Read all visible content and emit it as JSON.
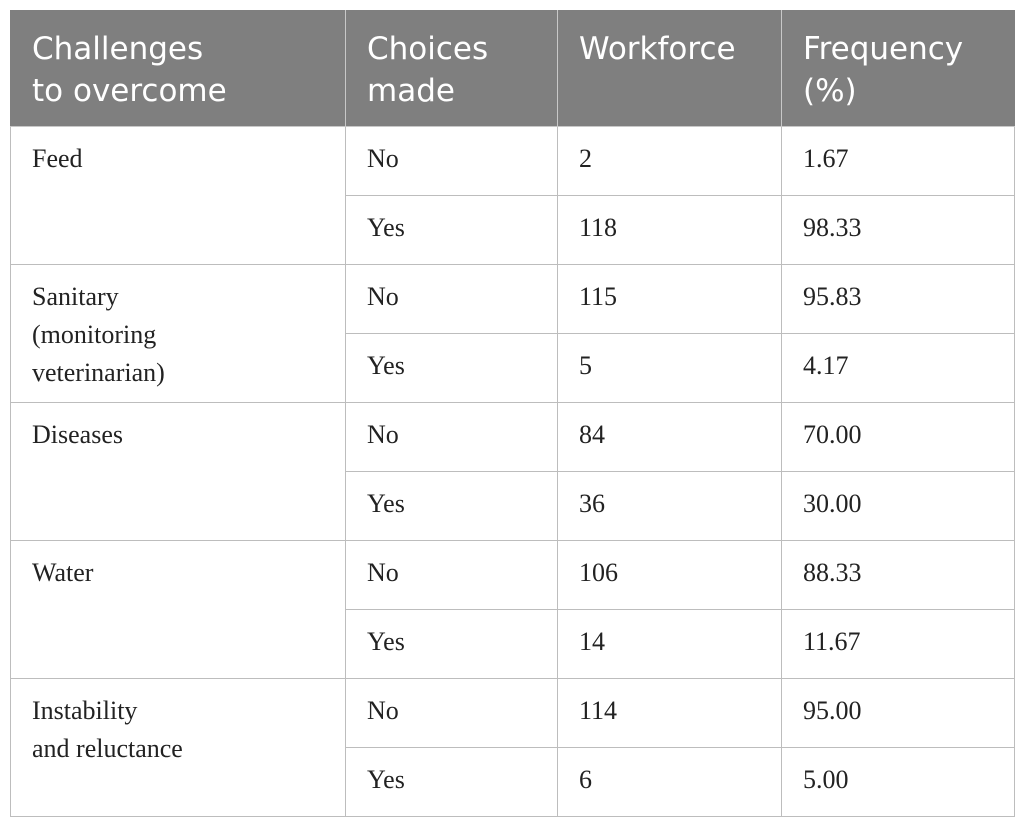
{
  "table": {
    "headers": [
      [
        "Challenges",
        "to overcome"
      ],
      [
        "Choices",
        "made"
      ],
      [
        "Workforce"
      ],
      [
        "Frequency",
        "(%)"
      ]
    ],
    "groups": [
      {
        "challenge": [
          "Feed"
        ],
        "rows": [
          {
            "choice": "No",
            "workforce": "2",
            "frequency": "1.67"
          },
          {
            "choice": "Yes",
            "workforce": "118",
            "frequency": "98.33"
          }
        ]
      },
      {
        "challenge": [
          "Sanitary",
          "(monitoring",
          "veterinarian)"
        ],
        "rows": [
          {
            "choice": "No",
            "workforce": "115",
            "frequency": "95.83"
          },
          {
            "choice": "Yes",
            "workforce": "5",
            "frequency": "4.17"
          }
        ]
      },
      {
        "challenge": [
          "Diseases"
        ],
        "rows": [
          {
            "choice": "No",
            "workforce": "84",
            "frequency": "70.00"
          },
          {
            "choice": "Yes",
            "workforce": "36",
            "frequency": "30.00"
          }
        ]
      },
      {
        "challenge": [
          "Water"
        ],
        "rows": [
          {
            "choice": "No",
            "workforce": "106",
            "frequency": "88.33"
          },
          {
            "choice": "Yes",
            "workforce": "14",
            "frequency": "11.67"
          }
        ]
      },
      {
        "challenge": [
          "Instability",
          "and reluctance"
        ],
        "rows": [
          {
            "choice": "No",
            "workforce": "114",
            "frequency": "95.00"
          },
          {
            "choice": "Yes",
            "workforce": "6",
            "frequency": "5.00"
          }
        ]
      }
    ]
  }
}
